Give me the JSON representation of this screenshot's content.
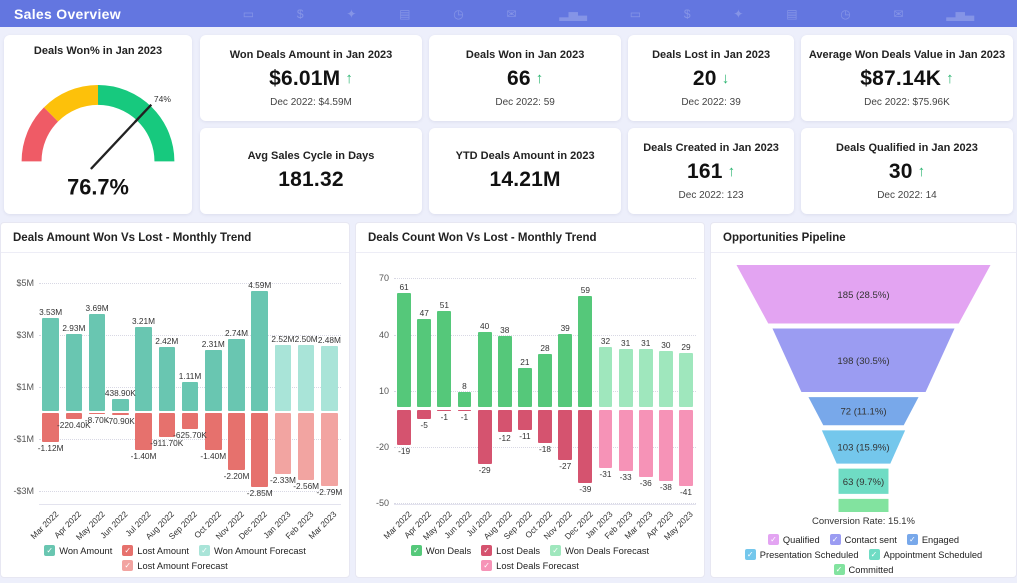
{
  "header": {
    "title": "Sales Overview",
    "background": "#6376e0",
    "icons": [
      {
        "name": "chat-icon",
        "glyph": "▭"
      },
      {
        "name": "dollar-icon",
        "glyph": "$"
      },
      {
        "name": "megaphone-icon",
        "glyph": "✦"
      },
      {
        "name": "document-icon",
        "glyph": "▤"
      },
      {
        "name": "clock-icon",
        "glyph": "◷"
      },
      {
        "name": "mail-icon",
        "glyph": "✉"
      },
      {
        "name": "bar-chart-icon",
        "glyph": "▂▅▃"
      },
      {
        "name": "chat-icon",
        "glyph": "▭"
      },
      {
        "name": "dollar-icon",
        "glyph": "$"
      },
      {
        "name": "megaphone-icon",
        "glyph": "✦"
      },
      {
        "name": "document-icon",
        "glyph": "▤"
      },
      {
        "name": "clock-icon",
        "glyph": "◷"
      },
      {
        "name": "mail-icon",
        "glyph": "✉"
      },
      {
        "name": "bar-chart-icon",
        "glyph": "▂▅▃"
      }
    ]
  },
  "kpi_cards": {
    "trend_up_color": "#2bb571",
    "trend_down_color": "#2bb571",
    "row1": [
      {
        "title": "Won Deals Amount in Jan 2023",
        "value": "$6.01M",
        "trend": "up",
        "compare": "Dec 2022: $4.59M"
      },
      {
        "title": "Deals Won in Jan 2023",
        "value": "66",
        "trend": "up",
        "compare": "Dec 2022: 59"
      },
      {
        "title": "Deals Lost in Jan 2023",
        "value": "20",
        "trend": "down",
        "compare": "Dec 2022: 39"
      },
      {
        "title": "Average Won Deals Value in Jan 2023",
        "value": "$87.14K",
        "trend": "up",
        "compare": "Dec 2022: $75.96K"
      }
    ],
    "row2": [
      {
        "title": "Avg Sales Cycle in Days",
        "value": "181.32"
      },
      {
        "title": "YTD Deals Amount in 2023",
        "value": "14.21M"
      },
      {
        "title": "Deals Created in Jan 2023",
        "value": "161",
        "trend": "up",
        "compare": "Dec 2022: 123"
      },
      {
        "title": "Deals Qualified in Jan 2023",
        "value": "30",
        "trend": "up",
        "compare": "Dec 2022: 14"
      }
    ]
  },
  "chart_data": [
    {
      "type": "gauge",
      "title": "Deals Won% in Jan 2023",
      "value": 76.7,
      "value_label": "76.7%",
      "needle_value": 74,
      "needle_label": "74%",
      "range": [
        0,
        100
      ],
      "segments": [
        {
          "from": 0,
          "to": 25,
          "color": "#ef5b66"
        },
        {
          "from": 25,
          "to": 50,
          "color": "#fdc10a"
        },
        {
          "from": 50,
          "to": 100,
          "color": "#17c97e"
        }
      ]
    },
    {
      "type": "bar",
      "title": "Deals Amount Won Vs Lost - Monthly Trend",
      "categories": [
        "Mar 2022",
        "Apr 2022",
        "May 2022",
        "Jun 2022",
        "Jul 2022",
        "Aug 2022",
        "Sep 2022",
        "Oct 2022",
        "Nov 2022",
        "Dec 2022",
        "Jan 2023",
        "Feb 2023",
        "Mar 2023"
      ],
      "forecast_start_index": 10,
      "ylim": [
        -3600000,
        5600000
      ],
      "yticks": [
        {
          "value": 5000000,
          "label": "$5M"
        },
        {
          "value": 3000000,
          "label": "$3M"
        },
        {
          "value": 1000000,
          "label": "$1M"
        },
        {
          "value": -1000000,
          "label": "-$1M"
        },
        {
          "value": -3000000,
          "label": "-$3M"
        }
      ],
      "series": [
        {
          "name": "Won Amount",
          "color": "#69c6b1",
          "forecast_color": "#a9e4d8",
          "values": [
            3530000,
            2930000,
            3690000,
            438900,
            3210000,
            2420000,
            1110000,
            2310000,
            2740000,
            4590000,
            2520000,
            2500000,
            2480000
          ],
          "labels": [
            "3.53M",
            "2.93M",
            "3.69M",
            "438.90K",
            "3.21M",
            "2.42M",
            "1.11M",
            "2.31M",
            "2.74M",
            "4.59M",
            "2.52M",
            "2.50M",
            "2.48M"
          ]
        },
        {
          "name": "Lost Amount",
          "color": "#e6716d",
          "forecast_color": "#f2a4a1",
          "values": [
            -1120000,
            -220400,
            -8700,
            -70900,
            -1400000,
            -911700,
            -625700,
            -1400000,
            -2200000,
            -2850000,
            -2330000,
            -2560000,
            -2790000
          ],
          "labels": [
            "-1.12M",
            "-220.40K",
            "-8.70K",
            "-70.90K",
            "-1.40M",
            "-911.70K",
            "-625.70K",
            "-1.40M",
            "-2.20M",
            "-2.85M",
            "-2.33M",
            "-2.56M",
            "-2.79M"
          ]
        }
      ],
      "legend": [
        {
          "label": "Won Amount",
          "color": "#69c6b1"
        },
        {
          "label": "Lost Amount",
          "color": "#e6716d"
        },
        {
          "label": "Won Amount Forecast",
          "color": "#a9e4d8"
        },
        {
          "label": "Lost Amount Forecast",
          "color": "#f2a4a1"
        }
      ]
    },
    {
      "type": "bar",
      "title": "Deals Count Won Vs Lost - Monthly Trend",
      "categories": [
        "Mar 2022",
        "Apr 2022",
        "May 2022",
        "Jun 2022",
        "Jul 2022",
        "Aug 2022",
        "Sep 2022",
        "Oct 2022",
        "Nov 2022",
        "Dec 2022",
        "Jan 2023",
        "Feb 2023",
        "Mar 2023",
        "Apr 2023",
        "May 2023"
      ],
      "forecast_start_index": 10,
      "ylim": [
        -52,
        76
      ],
      "yticks": [
        {
          "value": 70,
          "label": "70"
        },
        {
          "value": 40,
          "label": "40"
        },
        {
          "value": 10,
          "label": "10"
        },
        {
          "value": -20,
          "label": "-20"
        },
        {
          "value": -50,
          "label": "-50"
        }
      ],
      "series": [
        {
          "name": "Won Deals",
          "color": "#55c87a",
          "forecast_color": "#9fe7bd",
          "values": [
            61,
            47,
            51,
            8,
            40,
            38,
            21,
            28,
            39,
            59,
            32,
            31,
            31,
            30,
            29
          ],
          "labels": [
            "61",
            "47",
            "51",
            "8",
            "40",
            "38",
            "21",
            "28",
            "39",
            "59",
            "32",
            "31",
            "31",
            "30",
            "29"
          ]
        },
        {
          "name": "Lost Deals",
          "color": "#d5536f",
          "forecast_color": "#f693b7",
          "values": [
            -19,
            -5,
            -1,
            -1,
            -29,
            -12,
            -11,
            -18,
            -27,
            -39,
            -31,
            -33,
            -36,
            -38,
            -41
          ],
          "labels": [
            "-19",
            "-5",
            "-1",
            "-1",
            "-29",
            "-12",
            "-11",
            "-18",
            "-27",
            "-39",
            "-31",
            "-33",
            "-36",
            "-38",
            "-41"
          ]
        }
      ],
      "legend": [
        {
          "label": "Won Deals",
          "color": "#55c87a"
        },
        {
          "label": "Lost Deals",
          "color": "#d5536f"
        },
        {
          "label": "Won Deals Forecast",
          "color": "#9fe7bd"
        },
        {
          "label": "Lost Deals Forecast",
          "color": "#f693b7"
        }
      ]
    },
    {
      "type": "funnel",
      "title": "Opportunities Pipeline",
      "stages": [
        {
          "label": "Qualified",
          "value": 185,
          "display": "185 (28.5%)",
          "color": "#e3a4f2"
        },
        {
          "label": "Contact sent",
          "value": 198,
          "display": "198 (30.5%)",
          "color": "#9b9cf2"
        },
        {
          "label": "Engaged",
          "value": 72,
          "display": "72 (11.1%)",
          "color": "#78a8ea"
        },
        {
          "label": "Presentation Scheduled",
          "value": 103,
          "display": "103 (15.9%)",
          "color": "#74c7ec"
        },
        {
          "label": "Appointment Scheduled",
          "value": 63,
          "display": "63 (9.7%)",
          "color": "#6fdcc4"
        },
        {
          "label": "Committed",
          "display": "",
          "color": "#82e39f"
        }
      ],
      "conversion_rate": "Conversion Rate: 15.1%",
      "legend": [
        {
          "label": "Qualified",
          "color": "#e3a4f2"
        },
        {
          "label": "Contact sent",
          "color": "#9b9cf2"
        },
        {
          "label": "Engaged",
          "color": "#78a8ea"
        },
        {
          "label": "Presentation Scheduled",
          "color": "#74c7ec"
        },
        {
          "label": "Appointment Scheduled",
          "color": "#6fdcc4"
        },
        {
          "label": "Committed",
          "color": "#82e39f"
        }
      ]
    }
  ]
}
